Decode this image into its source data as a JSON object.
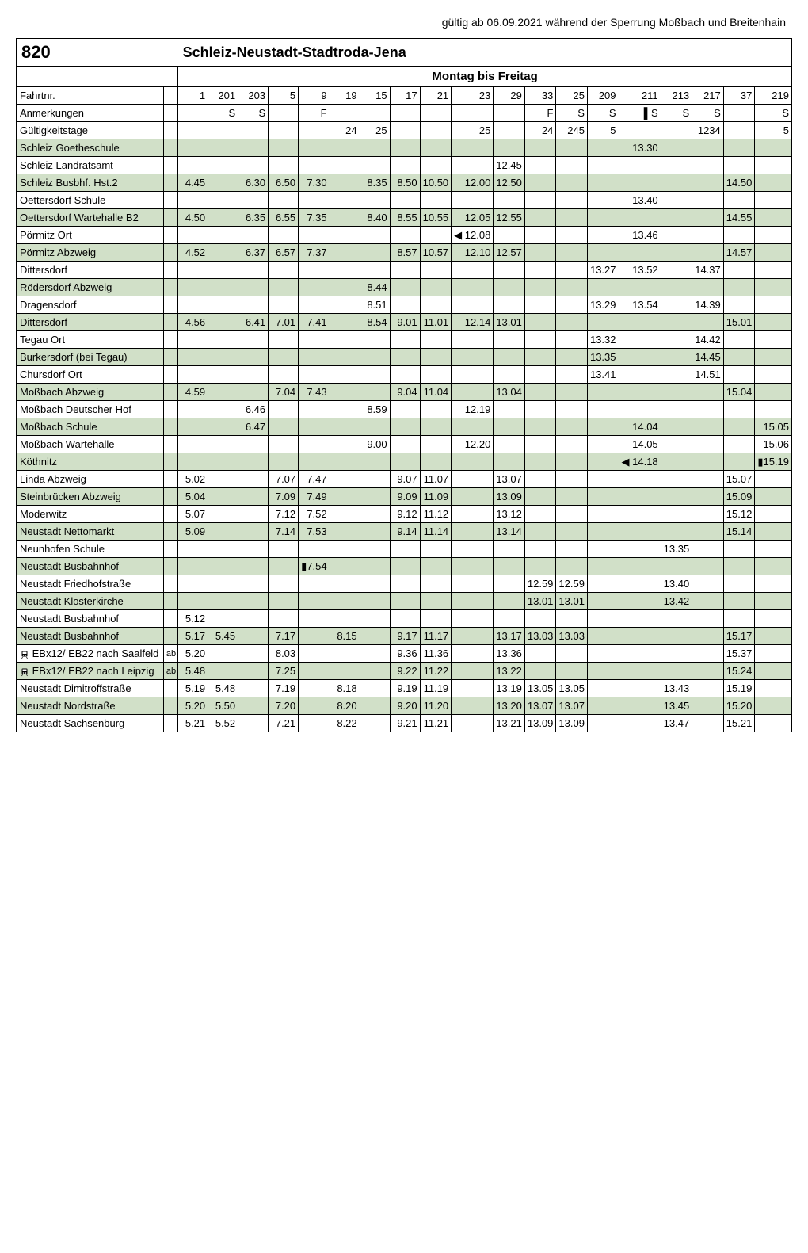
{
  "validity_note": "gültig ab 06.09.2021 während der Sperrung Moßbach und Breitenhain",
  "route_number": "820",
  "route_name": "Schleiz-Neustadt-Stadtroda-Jena",
  "days_header": "Montag bis Freitag",
  "colors": {
    "shade": "#d1e0c8",
    "border": "#000000",
    "bg": "#ffffff"
  },
  "trip_numbers": [
    "1",
    "201",
    "203",
    "5",
    "9",
    "19",
    "15",
    "17",
    "21",
    "23",
    "29",
    "33",
    "25",
    "209",
    "211",
    "213",
    "217",
    "37",
    "219"
  ],
  "anmerkungen": [
    "",
    "S",
    "S",
    "",
    "F",
    "",
    "",
    "",
    "",
    "",
    "",
    "F",
    "S",
    "S",
    "▌S",
    "S",
    "S",
    "",
    "S"
  ],
  "gueltigkeit": [
    "",
    "",
    "",
    "",
    "",
    "24",
    "25",
    "",
    "",
    "25",
    "",
    "24",
    "245",
    "5",
    "",
    "",
    "1234",
    "",
    "5"
  ],
  "stops": [
    {
      "name": "Fahrtnr.",
      "label": true
    },
    {
      "name": "Anmerkungen",
      "label": true
    },
    {
      "name": "Gültigkeitstage",
      "label": true
    },
    {
      "name": "Schleiz Goetheschule",
      "shade": true,
      "t": [
        "",
        "",
        "",
        "",
        "",
        "",
        "",
        "",
        "",
        "",
        "",
        "",
        "",
        "",
        "13.30",
        "",
        "",
        "",
        ""
      ]
    },
    {
      "name": "Schleiz Landratsamt",
      "t": [
        "",
        "",
        "",
        "",
        "",
        "",
        "",
        "",
        "",
        "",
        "12.45",
        "",
        "",
        "",
        "",
        "",
        "",
        "",
        ""
      ]
    },
    {
      "name": "Schleiz Busbhf. Hst.2",
      "shade": true,
      "t": [
        "4.45",
        "",
        "6.30",
        "6.50",
        "7.30",
        "",
        "8.35",
        "8.50",
        "10.50",
        "12.00",
        "12.50",
        "",
        "",
        "",
        "",
        "",
        "",
        "14.50",
        ""
      ]
    },
    {
      "name": "Oettersdorf Schule",
      "t": [
        "",
        "",
        "",
        "",
        "",
        "",
        "",
        "",
        "",
        "",
        "",
        "",
        "",
        "",
        "13.40",
        "",
        "",
        "",
        ""
      ]
    },
    {
      "name": "Oettersdorf Wartehalle B2",
      "shade": true,
      "t": [
        "4.50",
        "",
        "6.35",
        "6.55",
        "7.35",
        "",
        "8.40",
        "8.55",
        "10.55",
        "12.05",
        "12.55",
        "",
        "",
        "",
        "",
        "",
        "",
        "14.55",
        ""
      ]
    },
    {
      "name": "Pörmitz Ort",
      "t": [
        "",
        "",
        "",
        "",
        "",
        "",
        "",
        "",
        "",
        "◀ 12.08",
        "",
        "",
        "",
        "",
        "13.46",
        "",
        "",
        "",
        ""
      ]
    },
    {
      "name": "Pörmitz Abzweig",
      "shade": true,
      "t": [
        "4.52",
        "",
        "6.37",
        "6.57",
        "7.37",
        "",
        "",
        "8.57",
        "10.57",
        "12.10",
        "12.57",
        "",
        "",
        "",
        "",
        "",
        "",
        "14.57",
        ""
      ]
    },
    {
      "name": "Dittersdorf",
      "t": [
        "",
        "",
        "",
        "",
        "",
        "",
        "",
        "",
        "",
        "",
        "",
        "",
        "",
        "13.27",
        "13.52",
        "",
        "14.37",
        "",
        ""
      ]
    },
    {
      "name": "Rödersdorf Abzweig",
      "shade": true,
      "t": [
        "",
        "",
        "",
        "",
        "",
        "",
        "8.44",
        "",
        "",
        "",
        "",
        "",
        "",
        "",
        "",
        "",
        "",
        "",
        ""
      ]
    },
    {
      "name": "Dragensdorf",
      "t": [
        "",
        "",
        "",
        "",
        "",
        "",
        "8.51",
        "",
        "",
        "",
        "",
        "",
        "",
        "13.29",
        "13.54",
        "",
        "14.39",
        "",
        ""
      ]
    },
    {
      "name": "Dittersdorf",
      "shade": true,
      "t": [
        "4.56",
        "",
        "6.41",
        "7.01",
        "7.41",
        "",
        "8.54",
        "9.01",
        "11.01",
        "12.14",
        "13.01",
        "",
        "",
        "",
        "",
        "",
        "",
        "15.01",
        ""
      ]
    },
    {
      "name": "Tegau Ort",
      "t": [
        "",
        "",
        "",
        "",
        "",
        "",
        "",
        "",
        "",
        "",
        "",
        "",
        "",
        "13.32",
        "",
        "",
        "14.42",
        "",
        ""
      ]
    },
    {
      "name": "Burkersdorf (bei Tegau)",
      "shade": true,
      "t": [
        "",
        "",
        "",
        "",
        "",
        "",
        "",
        "",
        "",
        "",
        "",
        "",
        "",
        "13.35",
        "",
        "",
        "14.45",
        "",
        ""
      ]
    },
    {
      "name": "Chursdorf Ort",
      "t": [
        "",
        "",
        "",
        "",
        "",
        "",
        "",
        "",
        "",
        "",
        "",
        "",
        "",
        "13.41",
        "",
        "",
        "14.51",
        "",
        ""
      ]
    },
    {
      "name": "Moßbach Abzweig",
      "shade": true,
      "t": [
        "4.59",
        "",
        "",
        "7.04",
        "7.43",
        "",
        "",
        "9.04",
        "11.04",
        "",
        "13.04",
        "",
        "",
        "",
        "",
        "",
        "",
        "15.04",
        ""
      ]
    },
    {
      "name": "Moßbach Deutscher Hof",
      "t": [
        "",
        "",
        "6.46",
        "",
        "",
        "",
        "8.59",
        "",
        "",
        "12.19",
        "",
        "",
        "",
        "",
        "",
        "",
        "",
        "",
        ""
      ]
    },
    {
      "name": "Moßbach Schule",
      "shade": true,
      "t": [
        "",
        "",
        "6.47",
        "",
        "",
        "",
        "",
        "",
        "",
        "",
        "",
        "",
        "",
        "",
        "14.04",
        "",
        "",
        "",
        "15.05"
      ]
    },
    {
      "name": "Moßbach Wartehalle",
      "t": [
        "",
        "",
        "",
        "",
        "",
        "",
        "9.00",
        "",
        "",
        "12.20",
        "",
        "",
        "",
        "",
        "14.05",
        "",
        "",
        "",
        "15.06"
      ]
    },
    {
      "name": "Köthnitz",
      "shade": true,
      "t": [
        "",
        "",
        "",
        "",
        "",
        "",
        "",
        "",
        "",
        "",
        "",
        "",
        "",
        "",
        "◀ 14.18",
        "",
        "",
        "",
        "▮15.19"
      ]
    },
    {
      "name": "Linda Abzweig",
      "t": [
        "5.02",
        "",
        "",
        "7.07",
        "7.47",
        "",
        "",
        "9.07",
        "11.07",
        "",
        "13.07",
        "",
        "",
        "",
        "",
        "",
        "",
        "15.07",
        ""
      ]
    },
    {
      "name": "Steinbrücken Abzweig",
      "shade": true,
      "t": [
        "5.04",
        "",
        "",
        "7.09",
        "7.49",
        "",
        "",
        "9.09",
        "11.09",
        "",
        "13.09",
        "",
        "",
        "",
        "",
        "",
        "",
        "15.09",
        ""
      ]
    },
    {
      "name": "Moderwitz",
      "t": [
        "5.07",
        "",
        "",
        "7.12",
        "7.52",
        "",
        "",
        "9.12",
        "11.12",
        "",
        "13.12",
        "",
        "",
        "",
        "",
        "",
        "",
        "15.12",
        ""
      ]
    },
    {
      "name": "Neustadt Nettomarkt",
      "shade": true,
      "t": [
        "5.09",
        "",
        "",
        "7.14",
        "7.53",
        "",
        "",
        "9.14",
        "11.14",
        "",
        "13.14",
        "",
        "",
        "",
        "",
        "",
        "",
        "15.14",
        ""
      ]
    },
    {
      "name": "Neunhofen Schule",
      "t": [
        "",
        "",
        "",
        "",
        "",
        "",
        "",
        "",
        "",
        "",
        "",
        "",
        "",
        "",
        "",
        "13.35",
        "",
        "",
        ""
      ]
    },
    {
      "name": "Neustadt Busbahnhof",
      "shade": true,
      "t": [
        "",
        "",
        "",
        "",
        "▮7.54",
        "",
        "",
        "",
        "",
        "",
        "",
        "",
        "",
        "",
        "",
        "",
        "",
        "",
        ""
      ]
    },
    {
      "name": "Neustadt Friedhofstraße",
      "t": [
        "",
        "",
        "",
        "",
        "",
        "",
        "",
        "",
        "",
        "",
        "",
        "12.59",
        "12.59",
        "",
        "",
        "13.40",
        "",
        "",
        ""
      ]
    },
    {
      "name": "Neustadt Klosterkirche",
      "shade": true,
      "t": [
        "",
        "",
        "",
        "",
        "",
        "",
        "",
        "",
        "",
        "",
        "",
        "13.01",
        "13.01",
        "",
        "",
        "13.42",
        "",
        "",
        ""
      ]
    },
    {
      "name": "Neustadt Busbahnhof",
      "t": [
        "5.12",
        "",
        "",
        "",
        "",
        "",
        "",
        "",
        "",
        "",
        "",
        "",
        "",
        "",
        "",
        "",
        "",
        "",
        ""
      ]
    },
    {
      "name": "Neustadt Busbahnhof",
      "shade": true,
      "t": [
        "5.17",
        "5.45",
        "",
        "7.17",
        "",
        "8.15",
        "",
        "9.17",
        "11.17",
        "",
        "13.17",
        "13.03",
        "13.03",
        "",
        "",
        "",
        "",
        "15.17",
        ""
      ]
    },
    {
      "name": "EBx12/ EB22 nach Saalfeld",
      "icon": "train",
      "ab": true,
      "t": [
        "5.20",
        "",
        "",
        "8.03",
        "",
        "",
        "",
        "9.36",
        "11.36",
        "",
        "13.36",
        "",
        "",
        "",
        "",
        "",
        "",
        "15.37",
        ""
      ]
    },
    {
      "name": "EBx12/ EB22 nach Leipzig",
      "icon": "train",
      "ab": true,
      "shade": true,
      "t": [
        "5.48",
        "",
        "",
        "7.25",
        "",
        "",
        "",
        "9.22",
        "11.22",
        "",
        "13.22",
        "",
        "",
        "",
        "",
        "",
        "",
        "15.24",
        ""
      ]
    },
    {
      "name": "Neustadt Dimitroffstraße",
      "t": [
        "5.19",
        "5.48",
        "",
        "7.19",
        "",
        "8.18",
        "",
        "9.19",
        "11.19",
        "",
        "13.19",
        "13.05",
        "13.05",
        "",
        "",
        "13.43",
        "",
        "15.19",
        ""
      ]
    },
    {
      "name": "Neustadt Nordstraße",
      "shade": true,
      "t": [
        "5.20",
        "5.50",
        "",
        "7.20",
        "",
        "8.20",
        "",
        "9.20",
        "11.20",
        "",
        "13.20",
        "13.07",
        "13.07",
        "",
        "",
        "13.45",
        "",
        "15.20",
        ""
      ]
    },
    {
      "name": "Neustadt Sachsenburg",
      "t": [
        "5.21",
        "5.52",
        "",
        "7.21",
        "",
        "8.22",
        "",
        "9.21",
        "11.21",
        "",
        "13.21",
        "13.09",
        "13.09",
        "",
        "",
        "13.47",
        "",
        "15.21",
        ""
      ]
    }
  ]
}
